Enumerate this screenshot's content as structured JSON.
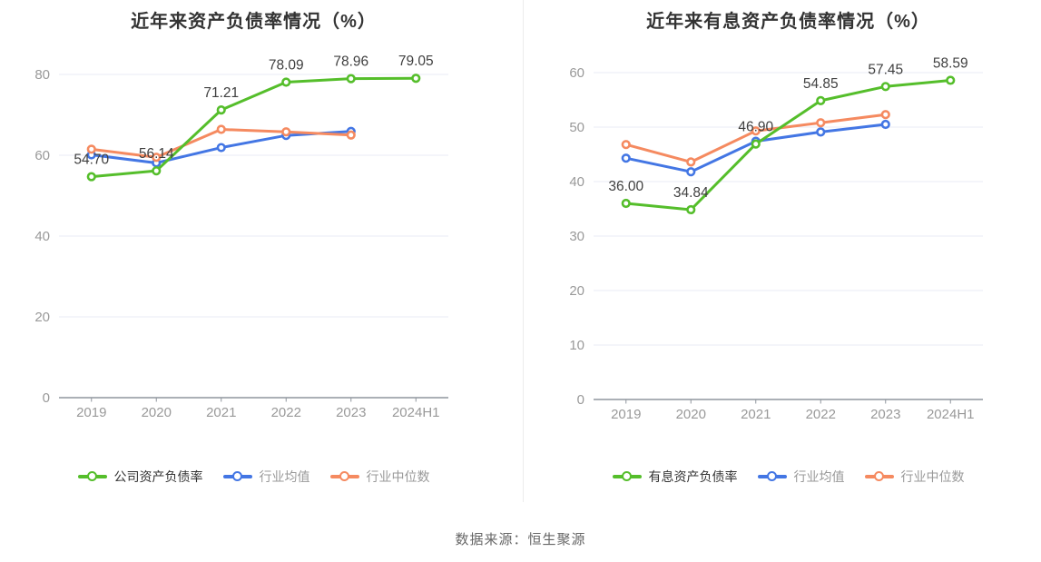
{
  "source_note": "数据来源：恒生聚源",
  "colors": {
    "company": "#55be2b",
    "industry_avg": "#4376e4",
    "industry_median": "#f58a60",
    "grid": "#e8ebf4",
    "axis": "#8f959d",
    "tick_label": "#999999",
    "value_label": "#404040"
  },
  "chart_data": [
    {
      "type": "line",
      "title": "近年来资产负债率情况（%）",
      "categories": [
        "2019",
        "2020",
        "2021",
        "2022",
        "2023",
        "2024H1"
      ],
      "ylim": [
        0,
        80
      ],
      "ytick_step": 20,
      "grid": true,
      "legend_position": "bottom",
      "series": [
        {
          "name": "公司资产负债率",
          "color_key": "company",
          "values": [
            54.7,
            56.14,
            71.21,
            78.09,
            78.96,
            79.05
          ],
          "point_labels": [
            "54.70",
            "56.14",
            "71.21",
            "78.09",
            "78.96",
            "79.05"
          ]
        },
        {
          "name": "行业均值",
          "color_key": "industry_avg",
          "values": [
            60.1,
            58.1,
            61.9,
            64.9,
            65.9
          ]
        },
        {
          "name": "行业中位数",
          "color_key": "industry_median",
          "values": [
            61.5,
            59.5,
            66.4,
            65.8,
            65.0
          ]
        }
      ]
    },
    {
      "type": "line",
      "title": "近年来有息资产负债率情况（%）",
      "categories": [
        "2019",
        "2020",
        "2021",
        "2022",
        "2023",
        "2024H1"
      ],
      "ylim": [
        0,
        60
      ],
      "ytick_step": 10,
      "grid": true,
      "legend_position": "bottom",
      "series": [
        {
          "name": "有息资产负债率",
          "color_key": "company",
          "values": [
            36.0,
            34.84,
            46.9,
            54.85,
            57.45,
            58.59
          ],
          "point_labels": [
            "36.00",
            "34.84",
            "46.90",
            "54.85",
            "57.45",
            "58.59"
          ]
        },
        {
          "name": "行业均值",
          "color_key": "industry_avg",
          "values": [
            44.3,
            41.8,
            47.4,
            49.1,
            50.5
          ]
        },
        {
          "name": "行业中位数",
          "color_key": "industry_median",
          "values": [
            46.8,
            43.6,
            49.3,
            50.8,
            52.3
          ]
        }
      ]
    }
  ]
}
